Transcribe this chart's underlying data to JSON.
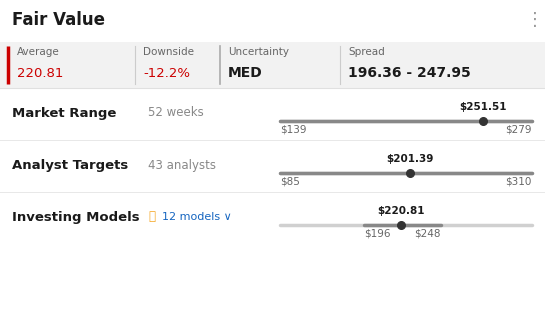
{
  "title": "Fair Value",
  "bg_color": "#ffffff",
  "header_bg": "#f2f2f2",
  "metrics": [
    {
      "label": "Average",
      "value": "220.81",
      "value_color": "#cc0000",
      "value_bold": false
    },
    {
      "label": "Downside",
      "value": "-12.2%",
      "value_color": "#cc0000",
      "value_bold": false
    },
    {
      "label": "Uncertainty",
      "value": "MED",
      "value_color": "#1a1a1a",
      "value_bold": true
    },
    {
      "label": "Spread",
      "value": "196.36 - 247.95",
      "value_color": "#1a1a1a",
      "value_bold": true
    }
  ],
  "rows": [
    {
      "label": "Market Range",
      "sublabel": "52 weeks",
      "bar_min": 139,
      "bar_max": 279,
      "dark_min": 139,
      "dark_max": 279,
      "dot_value": 251.51,
      "dot_label": "$251.51",
      "left_label": "$139",
      "right_label": "$279"
    },
    {
      "label": "Analyst Targets",
      "sublabel": "43 analysts",
      "bar_min": 85,
      "bar_max": 310,
      "dark_min": 85,
      "dark_max": 310,
      "dot_value": 201.39,
      "dot_label": "$201.39",
      "left_label": "$85",
      "right_label": "$310"
    },
    {
      "label": "Investing Models",
      "sublabel": "12 models",
      "sublabel_color": "#1565c0",
      "bar_min": 139,
      "bar_max": 310,
      "dark_min": 196,
      "dark_max": 248,
      "dot_value": 220.81,
      "dot_label": "$220.81",
      "left_label": "$196",
      "right_label": "$248"
    }
  ],
  "bar_color_dark": "#888888",
  "bar_color_light": "#d0d0d0",
  "dot_color": "#333333",
  "label_color": "#1a1a1a",
  "sublabel_color": "#888888",
  "red_border_color": "#cc0000"
}
